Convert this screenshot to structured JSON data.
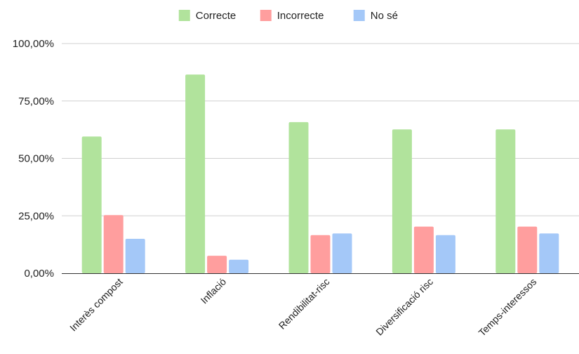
{
  "chart_data": {
    "type": "bar",
    "categories": [
      "Interès compost",
      "Inflació",
      "Rendibilitat-risc",
      "Diversificació risc",
      "Temps-interessos"
    ],
    "series": [
      {
        "name": "Correcte",
        "color": "#b1e39c",
        "values": [
          59.5,
          86.5,
          65.8,
          62.6,
          62.6
        ]
      },
      {
        "name": "Incorrecte",
        "color": "#ff9e9e",
        "values": [
          25.3,
          7.6,
          16.6,
          20.3,
          20.3
        ]
      },
      {
        "name": "No sé",
        "color": "#a4c8f8",
        "values": [
          15.0,
          5.9,
          17.3,
          16.6,
          17.3
        ]
      }
    ],
    "y_ticks": [
      "0,00%",
      "25,00%",
      "50,00%",
      "75,00%",
      "100,00%"
    ],
    "ylim": [
      0,
      100
    ],
    "grid": true,
    "legend_position": "top-center",
    "title": "",
    "xlabel": "",
    "ylabel": ""
  }
}
